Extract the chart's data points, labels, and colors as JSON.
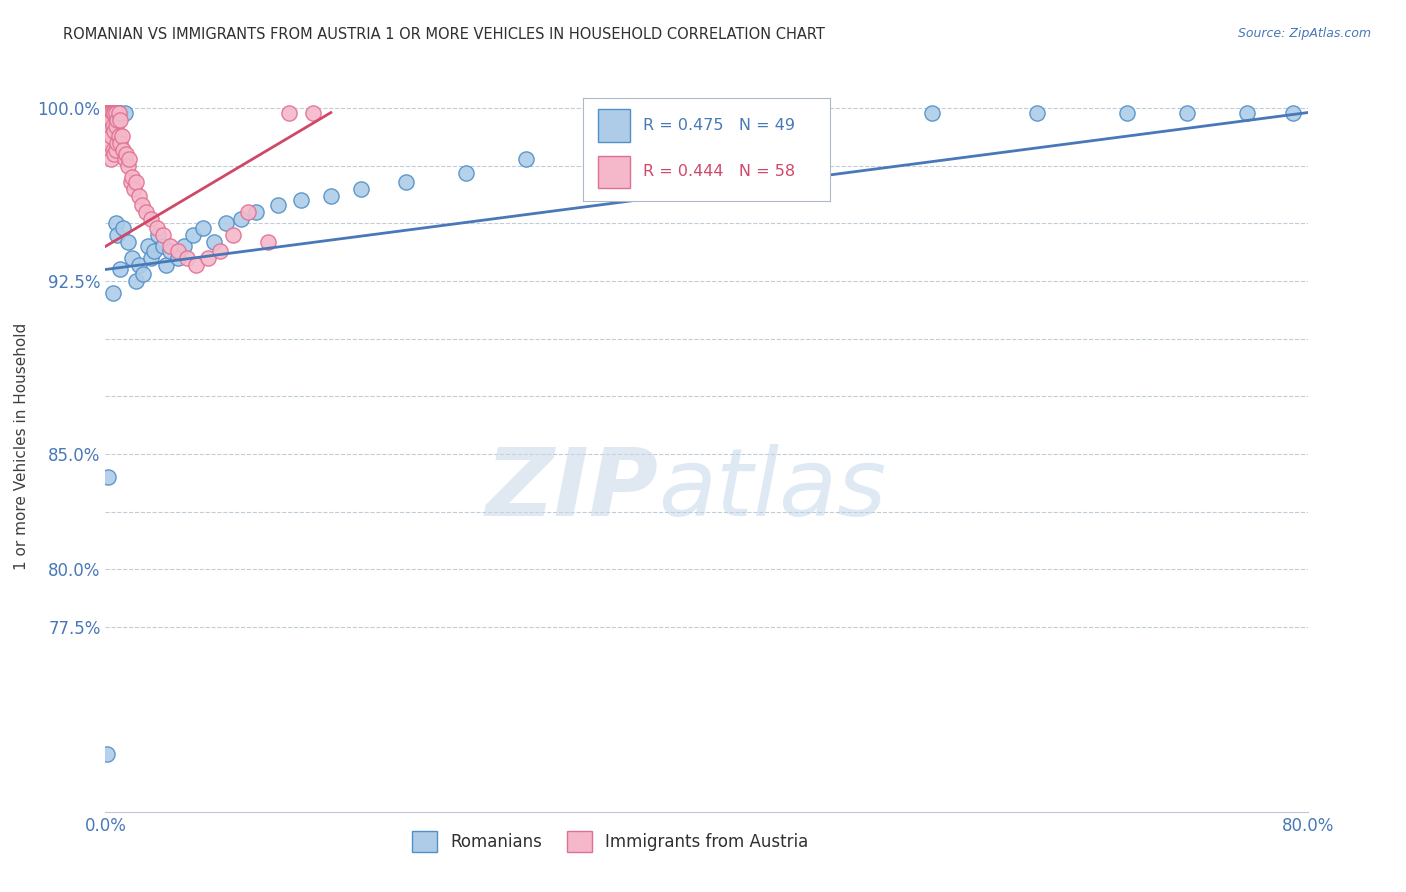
{
  "title": "ROMANIAN VS IMMIGRANTS FROM AUSTRIA 1 OR MORE VEHICLES IN HOUSEHOLD CORRELATION CHART",
  "source": "Source: ZipAtlas.com",
  "ylabel": "1 or more Vehicles in Household",
  "xlim": [
    0.0,
    0.8
  ],
  "ylim": [
    0.695,
    1.012
  ],
  "xticks": [
    0.0,
    0.1,
    0.2,
    0.3,
    0.4,
    0.5,
    0.6,
    0.7,
    0.8
  ],
  "xticklabels": [
    "0.0%",
    "",
    "",
    "",
    "",
    "",
    "",
    "",
    "80.0%"
  ],
  "yticks": [
    0.775,
    0.8,
    0.825,
    0.85,
    0.875,
    0.9,
    0.925,
    0.95,
    0.975,
    1.0
  ],
  "yticklabels": [
    "77.5%",
    "80.0%",
    "",
    "85.0%",
    "",
    "",
    "92.5%",
    "",
    "",
    "100.0%"
  ],
  "legend_blue_label": "Romanians",
  "legend_pink_label": "Immigrants from Austria",
  "R_blue": 0.475,
  "N_blue": 49,
  "R_pink": 0.444,
  "N_pink": 58,
  "blue_color": "#aecce8",
  "pink_color": "#f5b8cb",
  "blue_edge_color": "#5090c8",
  "pink_edge_color": "#e07090",
  "blue_line_color": "#4878b8",
  "pink_line_color": "#d04868",
  "watermark_zip": "ZIP",
  "watermark_atlas": "atlas",
  "blue_regression_x0": 0.0,
  "blue_regression_y0": 0.93,
  "blue_regression_x1": 0.8,
  "blue_regression_y1": 0.998,
  "pink_regression_x0": 0.0,
  "pink_regression_y0": 0.94,
  "pink_regression_x1": 0.15,
  "pink_regression_y1": 0.998,
  "blue_scatter_x": [
    0.001,
    0.002,
    0.003,
    0.004,
    0.005,
    0.006,
    0.007,
    0.008,
    0.009,
    0.01,
    0.01,
    0.012,
    0.013,
    0.015,
    0.018,
    0.02,
    0.022,
    0.025,
    0.028,
    0.03,
    0.032,
    0.035,
    0.038,
    0.04,
    0.043,
    0.048,
    0.052,
    0.058,
    0.065,
    0.072,
    0.08,
    0.09,
    0.1,
    0.115,
    0.13,
    0.15,
    0.17,
    0.2,
    0.24,
    0.28,
    0.34,
    0.38,
    0.42,
    0.55,
    0.62,
    0.68,
    0.72,
    0.76,
    0.79
  ],
  "blue_scatter_y": [
    0.72,
    0.84,
    0.998,
    0.998,
    0.92,
    0.998,
    0.95,
    0.945,
    0.998,
    0.93,
    0.998,
    0.948,
    0.998,
    0.942,
    0.935,
    0.925,
    0.932,
    0.928,
    0.94,
    0.935,
    0.938,
    0.945,
    0.94,
    0.932,
    0.938,
    0.935,
    0.94,
    0.945,
    0.948,
    0.942,
    0.95,
    0.952,
    0.955,
    0.958,
    0.96,
    0.962,
    0.965,
    0.968,
    0.972,
    0.978,
    0.982,
    0.988,
    0.992,
    0.998,
    0.998,
    0.998,
    0.998,
    0.998,
    0.998
  ],
  "pink_scatter_x": [
    0.0005,
    0.001,
    0.001,
    0.001,
    0.001,
    0.002,
    0.002,
    0.002,
    0.002,
    0.003,
    0.003,
    0.003,
    0.004,
    0.004,
    0.004,
    0.004,
    0.005,
    0.005,
    0.005,
    0.006,
    0.006,
    0.006,
    0.007,
    0.007,
    0.007,
    0.008,
    0.008,
    0.009,
    0.009,
    0.01,
    0.01,
    0.011,
    0.012,
    0.013,
    0.014,
    0.015,
    0.016,
    0.017,
    0.018,
    0.019,
    0.02,
    0.022,
    0.024,
    0.027,
    0.03,
    0.034,
    0.038,
    0.043,
    0.048,
    0.054,
    0.06,
    0.068,
    0.076,
    0.085,
    0.095,
    0.108,
    0.122,
    0.138
  ],
  "pink_scatter_y": [
    0.998,
    0.998,
    0.998,
    0.995,
    0.99,
    0.998,
    0.998,
    0.992,
    0.985,
    0.998,
    0.998,
    0.99,
    0.998,
    0.995,
    0.988,
    0.978,
    0.998,
    0.992,
    0.982,
    0.998,
    0.99,
    0.98,
    0.998,
    0.992,
    0.982,
    0.995,
    0.985,
    0.998,
    0.988,
    0.995,
    0.985,
    0.988,
    0.982,
    0.978,
    0.98,
    0.975,
    0.978,
    0.968,
    0.97,
    0.965,
    0.968,
    0.962,
    0.958,
    0.955,
    0.952,
    0.948,
    0.945,
    0.94,
    0.938,
    0.935,
    0.932,
    0.935,
    0.938,
    0.945,
    0.955,
    0.942,
    0.998,
    0.998
  ]
}
